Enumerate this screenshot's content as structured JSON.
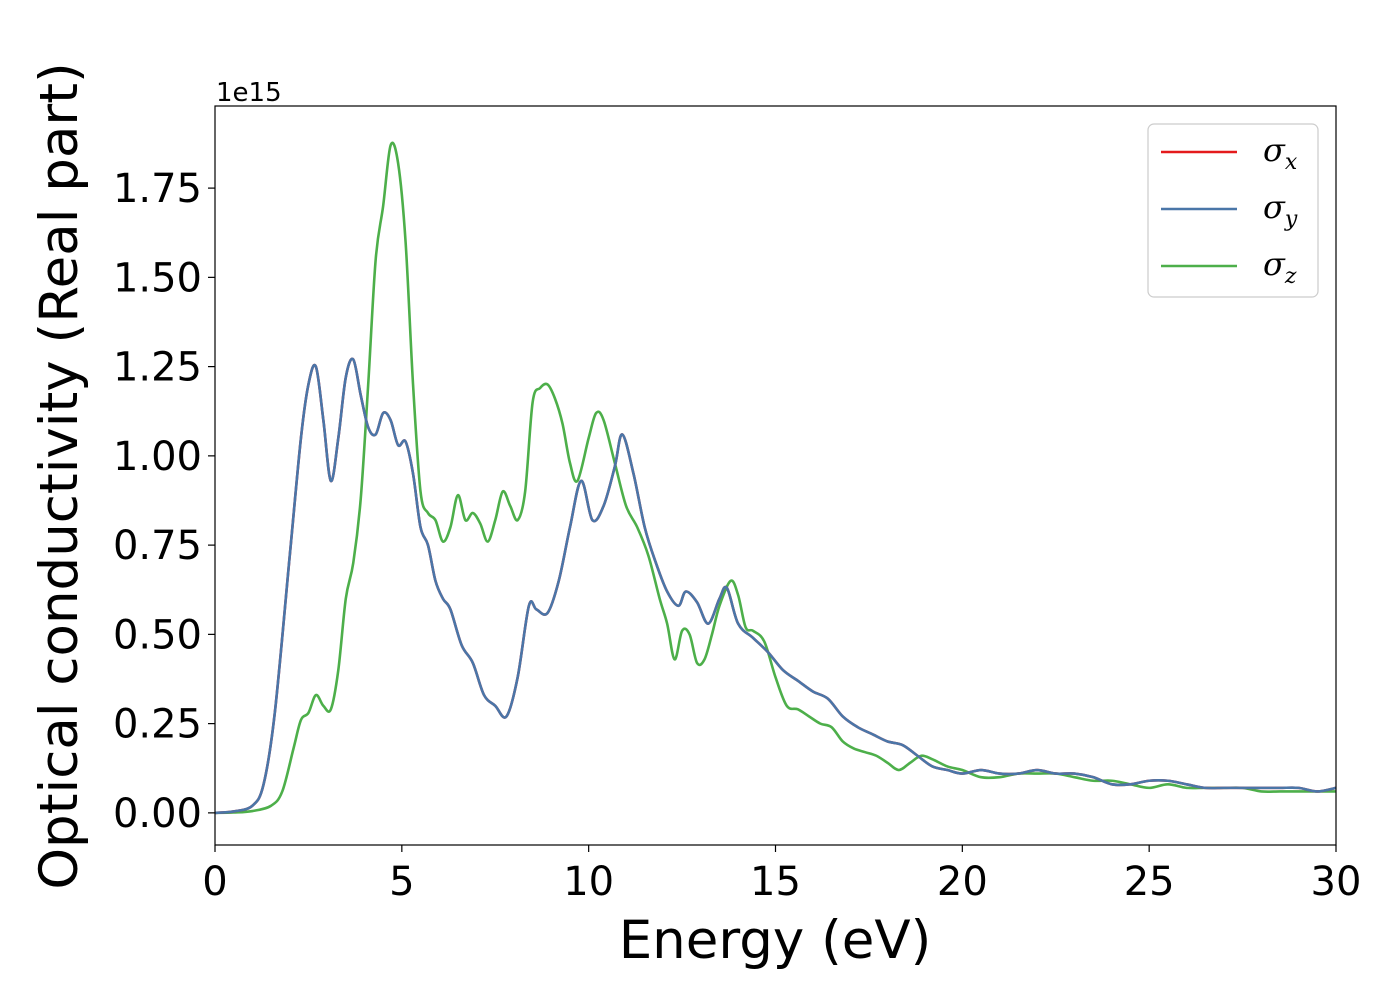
{
  "chart_data": {
    "type": "line",
    "xlabel": "Energy (eV)",
    "ylabel": "Optical conductivity (Real part)",
    "y_offset_text": "1e15",
    "xlim": [
      0,
      30
    ],
    "ylim": [
      -0.09,
      1.98
    ],
    "y_scale": 1000000000000000.0,
    "grid": false,
    "legend_position": "top-right",
    "x_ticks": [
      0,
      5,
      10,
      15,
      20,
      25,
      30
    ],
    "x_tick_labels": [
      "0",
      "5",
      "10",
      "15",
      "20",
      "25",
      "30"
    ],
    "y_ticks": [
      0.0,
      0.25,
      0.5,
      0.75,
      1.0,
      1.25,
      1.5,
      1.75
    ],
    "y_tick_labels": [
      "0.00",
      "0.25",
      "0.50",
      "0.75",
      "1.00",
      "1.25",
      "1.50",
      "1.75"
    ],
    "series": [
      {
        "name": "σx",
        "legend_main": "σ",
        "legend_sub": "x",
        "color": "#e41a1c",
        "x": [
          0,
          0.5,
          1.0,
          1.3,
          1.6,
          2.0,
          2.3,
          2.5,
          2.7,
          2.9,
          3.1,
          3.3,
          3.5,
          3.7,
          3.9,
          4.1,
          4.3,
          4.5,
          4.7,
          4.9,
          5.1,
          5.3,
          5.5,
          5.7,
          5.9,
          6.1,
          6.3,
          6.6,
          6.9,
          7.2,
          7.5,
          7.8,
          8.1,
          8.4,
          8.6,
          8.9,
          9.2,
          9.5,
          9.8,
          10.1,
          10.4,
          10.7,
          10.9,
          11.2,
          11.5,
          11.8,
          12.1,
          12.4,
          12.6,
          12.9,
          13.2,
          13.5,
          13.7,
          14.0,
          14.4,
          14.8,
          15.2,
          15.6,
          16.0,
          16.4,
          16.8,
          17.2,
          17.6,
          18.0,
          18.4,
          18.8,
          19.2,
          19.6,
          20.0,
          20.5,
          21.0,
          21.5,
          22.0,
          22.5,
          23.0,
          23.5,
          24.0,
          24.5,
          25.0,
          25.5,
          26.0,
          26.5,
          27.0,
          27.5,
          28.0,
          28.5,
          29.0,
          29.5,
          30.0
        ],
        "y": [
          0.0,
          0.004,
          0.02,
          0.08,
          0.28,
          0.72,
          1.05,
          1.2,
          1.25,
          1.1,
          0.93,
          1.05,
          1.22,
          1.27,
          1.17,
          1.08,
          1.06,
          1.12,
          1.1,
          1.03,
          1.04,
          0.95,
          0.8,
          0.75,
          0.65,
          0.6,
          0.57,
          0.47,
          0.42,
          0.33,
          0.3,
          0.27,
          0.38,
          0.58,
          0.57,
          0.56,
          0.65,
          0.8,
          0.93,
          0.82,
          0.86,
          0.97,
          1.06,
          0.95,
          0.8,
          0.7,
          0.62,
          0.58,
          0.62,
          0.59,
          0.53,
          0.6,
          0.63,
          0.53,
          0.49,
          0.45,
          0.4,
          0.37,
          0.34,
          0.32,
          0.27,
          0.24,
          0.22,
          0.2,
          0.19,
          0.16,
          0.13,
          0.12,
          0.11,
          0.12,
          0.11,
          0.11,
          0.12,
          0.11,
          0.11,
          0.1,
          0.08,
          0.08,
          0.09,
          0.09,
          0.08,
          0.07,
          0.07,
          0.07,
          0.07,
          0.07,
          0.07,
          0.06,
          0.07
        ]
      },
      {
        "name": "σy",
        "legend_main": "σ",
        "legend_sub": "y",
        "color": "#4a76a8",
        "x": [
          0,
          0.5,
          1.0,
          1.3,
          1.6,
          2.0,
          2.3,
          2.5,
          2.7,
          2.9,
          3.1,
          3.3,
          3.5,
          3.7,
          3.9,
          4.1,
          4.3,
          4.5,
          4.7,
          4.9,
          5.1,
          5.3,
          5.5,
          5.7,
          5.9,
          6.1,
          6.3,
          6.6,
          6.9,
          7.2,
          7.5,
          7.8,
          8.1,
          8.4,
          8.6,
          8.9,
          9.2,
          9.5,
          9.8,
          10.1,
          10.4,
          10.7,
          10.9,
          11.2,
          11.5,
          11.8,
          12.1,
          12.4,
          12.6,
          12.9,
          13.2,
          13.5,
          13.7,
          14.0,
          14.4,
          14.8,
          15.2,
          15.6,
          16.0,
          16.4,
          16.8,
          17.2,
          17.6,
          18.0,
          18.4,
          18.8,
          19.2,
          19.6,
          20.0,
          20.5,
          21.0,
          21.5,
          22.0,
          22.5,
          23.0,
          23.5,
          24.0,
          24.5,
          25.0,
          25.5,
          26.0,
          26.5,
          27.0,
          27.5,
          28.0,
          28.5,
          29.0,
          29.5,
          30.0
        ],
        "y": [
          0.0,
          0.004,
          0.02,
          0.08,
          0.28,
          0.72,
          1.05,
          1.2,
          1.25,
          1.1,
          0.93,
          1.05,
          1.22,
          1.27,
          1.17,
          1.08,
          1.06,
          1.12,
          1.1,
          1.03,
          1.04,
          0.95,
          0.8,
          0.75,
          0.65,
          0.6,
          0.57,
          0.47,
          0.42,
          0.33,
          0.3,
          0.27,
          0.38,
          0.58,
          0.57,
          0.56,
          0.65,
          0.8,
          0.93,
          0.82,
          0.86,
          0.97,
          1.06,
          0.95,
          0.8,
          0.7,
          0.62,
          0.58,
          0.62,
          0.59,
          0.53,
          0.6,
          0.63,
          0.53,
          0.49,
          0.45,
          0.4,
          0.37,
          0.34,
          0.32,
          0.27,
          0.24,
          0.22,
          0.2,
          0.19,
          0.16,
          0.13,
          0.12,
          0.11,
          0.12,
          0.11,
          0.11,
          0.12,
          0.11,
          0.11,
          0.1,
          0.08,
          0.08,
          0.09,
          0.09,
          0.08,
          0.07,
          0.07,
          0.07,
          0.07,
          0.07,
          0.07,
          0.06,
          0.07
        ]
      },
      {
        "name": "σz",
        "legend_main": "σ",
        "legend_sub": "z",
        "color": "#4daf4a",
        "x": [
          0,
          0.5,
          1.0,
          1.5,
          1.8,
          2.1,
          2.3,
          2.5,
          2.7,
          2.9,
          3.1,
          3.3,
          3.5,
          3.7,
          3.9,
          4.1,
          4.3,
          4.5,
          4.7,
          4.9,
          5.1,
          5.3,
          5.5,
          5.7,
          5.9,
          6.1,
          6.3,
          6.5,
          6.7,
          6.9,
          7.1,
          7.3,
          7.5,
          7.7,
          7.9,
          8.1,
          8.3,
          8.5,
          8.7,
          8.9,
          9.1,
          9.3,
          9.5,
          9.7,
          10.0,
          10.2,
          10.4,
          10.7,
          11.0,
          11.3,
          11.6,
          11.9,
          12.1,
          12.3,
          12.5,
          12.7,
          12.9,
          13.1,
          13.3,
          13.5,
          13.8,
          14.0,
          14.2,
          14.4,
          14.7,
          15.0,
          15.3,
          15.6,
          15.9,
          16.2,
          16.5,
          16.8,
          17.1,
          17.4,
          17.7,
          18.0,
          18.3,
          18.6,
          18.9,
          19.2,
          19.6,
          20.0,
          20.5,
          21.0,
          21.5,
          22.0,
          22.5,
          23.0,
          23.5,
          24.0,
          24.5,
          25.0,
          25.5,
          26.0,
          26.5,
          27.0,
          27.5,
          28.0,
          28.5,
          29.0,
          29.5,
          30.0
        ],
        "y": [
          0.0,
          0.001,
          0.005,
          0.02,
          0.06,
          0.18,
          0.26,
          0.28,
          0.33,
          0.3,
          0.29,
          0.4,
          0.6,
          0.7,
          0.88,
          1.2,
          1.55,
          1.7,
          1.87,
          1.82,
          1.6,
          1.2,
          0.9,
          0.84,
          0.82,
          0.76,
          0.8,
          0.89,
          0.82,
          0.84,
          0.81,
          0.76,
          0.82,
          0.9,
          0.86,
          0.82,
          0.9,
          1.15,
          1.19,
          1.2,
          1.16,
          1.09,
          0.98,
          0.93,
          1.05,
          1.12,
          1.1,
          0.98,
          0.86,
          0.8,
          0.72,
          0.6,
          0.53,
          0.43,
          0.51,
          0.5,
          0.42,
          0.43,
          0.5,
          0.58,
          0.65,
          0.61,
          0.52,
          0.51,
          0.48,
          0.38,
          0.3,
          0.29,
          0.27,
          0.25,
          0.24,
          0.2,
          0.18,
          0.17,
          0.16,
          0.14,
          0.12,
          0.14,
          0.16,
          0.15,
          0.13,
          0.12,
          0.1,
          0.1,
          0.11,
          0.11,
          0.11,
          0.1,
          0.09,
          0.09,
          0.08,
          0.07,
          0.08,
          0.07,
          0.07,
          0.07,
          0.07,
          0.06,
          0.06,
          0.06,
          0.06,
          0.06
        ]
      }
    ]
  }
}
